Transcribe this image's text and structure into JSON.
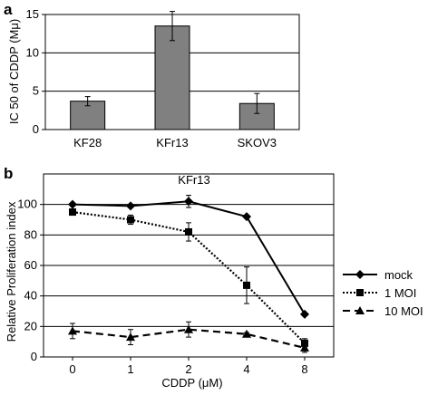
{
  "chart_data": [
    {
      "panel": "a",
      "type": "bar",
      "categories": [
        "KF28",
        "KFr13",
        "SKOV3"
      ],
      "values": [
        3.7,
        13.5,
        3.4
      ],
      "errors": [
        0.6,
        1.9,
        1.3
      ],
      "title": "",
      "xlabel": "",
      "ylabel": "IC 50 of CDDP (Mμ)",
      "ylim": [
        0,
        15
      ],
      "yticks": [
        "0",
        "5",
        "10",
        "15"
      ],
      "grid": true,
      "bar_color": "#808080"
    },
    {
      "panel": "b",
      "type": "line",
      "title": "KFr13",
      "categories": [
        "0",
        "1",
        "2",
        "4",
        "8"
      ],
      "xlabel": "CDDP (μM)",
      "ylabel": "Relative Proliferation index",
      "ylim": [
        0,
        120
      ],
      "yticks": [
        "0",
        "20",
        "40",
        "60",
        "80",
        "100"
      ],
      "grid": true,
      "legend_position": "right",
      "series": [
        {
          "name": "mock",
          "values": [
            100,
            99,
            102,
            92,
            28
          ],
          "errors": [
            1,
            1,
            4,
            1,
            1
          ],
          "marker": "diamond",
          "line": "solid"
        },
        {
          "name": "1 MOI",
          "values": [
            95,
            90,
            82,
            47,
            9
          ],
          "errors": [
            2,
            3,
            6,
            12,
            3
          ],
          "marker": "square",
          "line": "dotted"
        },
        {
          "name": "10 MOI",
          "values": [
            17,
            13,
            18,
            15,
            6
          ],
          "errors": [
            5,
            5,
            5,
            1,
            3
          ],
          "marker": "triangle",
          "line": "dashed"
        }
      ]
    }
  ],
  "panels": {
    "a_label": "a",
    "b_label": "b"
  }
}
